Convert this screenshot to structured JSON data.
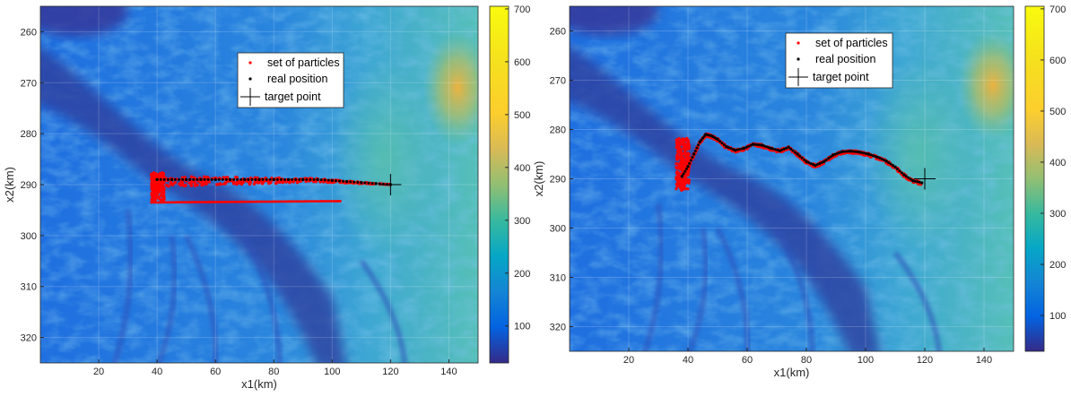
{
  "chart_data": [
    {
      "type": "scatter",
      "title": "",
      "xlabel": "x1(km)",
      "ylabel": "x2(km)",
      "xlim": [
        0,
        150
      ],
      "ylim": [
        255,
        325
      ],
      "y_reversed": true,
      "grid": true,
      "legend_position": "top-center",
      "xticks": [
        "20",
        "40",
        "60",
        "80",
        "100",
        "120",
        "140"
      ],
      "yticks": [
        "260",
        "270",
        "280",
        "290",
        "300",
        "310",
        "320"
      ],
      "legend": {
        "particles": "set of particles",
        "real": "real position",
        "target": "target point"
      },
      "colorbar": {
        "ticks": [
          "100",
          "200",
          "300",
          "400",
          "500",
          "600",
          "700"
        ],
        "min": 30,
        "max": 705,
        "colormap": "parula"
      },
      "target_point": {
        "x": 120,
        "y": 290
      },
      "real_position": {
        "x": [
          40,
          45,
          50,
          55,
          60,
          65,
          70,
          75,
          80,
          85,
          90,
          95,
          100,
          105,
          110,
          115,
          120
        ],
        "y": [
          289,
          289,
          289,
          289,
          289,
          289,
          289,
          289,
          289,
          289,
          289,
          289,
          289.2,
          289.4,
          289.6,
          289.8,
          290
        ]
      },
      "particle_cloud": {
        "x_range": [
          38,
          120
        ],
        "y_range": [
          287,
          293.5
        ]
      }
    },
    {
      "type": "scatter",
      "title": "",
      "xlabel": "x1(km)",
      "ylabel": "x2(km)",
      "xlim": [
        0,
        150
      ],
      "ylim": [
        255,
        325
      ],
      "y_reversed": true,
      "grid": true,
      "legend_position": "top-center",
      "xticks": [
        "20",
        "40",
        "60",
        "80",
        "100",
        "120",
        "140"
      ],
      "yticks": [
        "260",
        "270",
        "280",
        "290",
        "300",
        "310",
        "320"
      ],
      "legend": {
        "particles": "set of particles",
        "real": "real position",
        "target": "target point"
      },
      "colorbar": {
        "ticks": [
          "100",
          "200",
          "300",
          "400",
          "500",
          "600",
          "700"
        ],
        "min": 30,
        "max": 705,
        "colormap": "parula"
      },
      "target_point": {
        "x": 120,
        "y": 290
      },
      "real_position": {
        "x": [
          38,
          40,
          42,
          44,
          46,
          48,
          50,
          53,
          56,
          59,
          62,
          65,
          68,
          71,
          74,
          77,
          80,
          83,
          86,
          89,
          92,
          95,
          98,
          101,
          104,
          107,
          110,
          113,
          116,
          119
        ],
        "y": [
          289.5,
          287.5,
          285,
          282.5,
          281,
          281.3,
          282,
          283.5,
          284.2,
          283.8,
          283,
          283.2,
          283.8,
          284.3,
          283.6,
          285,
          286.5,
          287.3,
          286.5,
          285.2,
          284.5,
          284.4,
          284.6,
          285,
          285.6,
          286.4,
          287.6,
          289.2,
          290.4,
          290.8
        ]
      },
      "particle_cloud": {
        "x_range": [
          36,
          121
        ],
        "y_range": [
          280.5,
          293
        ]
      }
    }
  ]
}
